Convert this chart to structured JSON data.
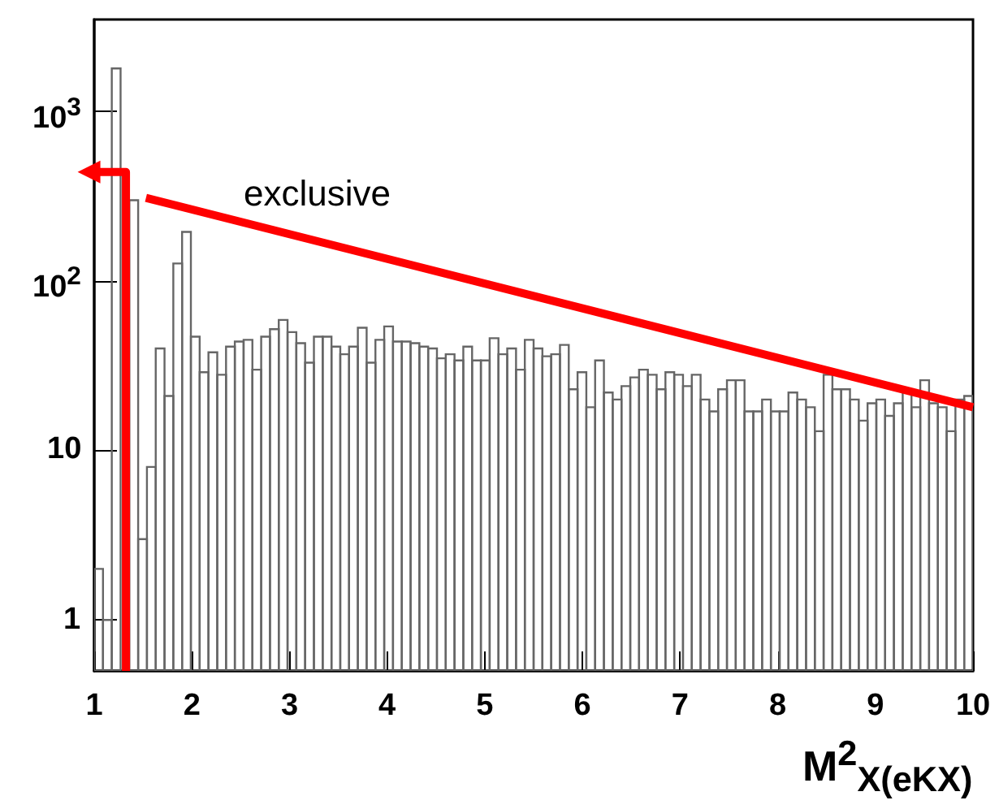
{
  "chart_data": {
    "type": "histogram",
    "xlabel": "M$^{2}$$_{X(eKX)}$",
    "annotations": [
      "exclusive"
    ],
    "color": "#666666",
    "log": "y",
    "bins": [
      1,
      1.09,
      1.18,
      1.27,
      1.36,
      1.45,
      1.54,
      1.63,
      1.72,
      1.81,
      1.9,
      1.99,
      2.08,
      2.17,
      2.26,
      2.35,
      2.44,
      2.53,
      2.62,
      2.71,
      2.8,
      2.89,
      2.98,
      3.07,
      3.16,
      3.25,
      3.34,
      3.43,
      3.52,
      3.61,
      3.7,
      3.79,
      3.88,
      3.97,
      4.06,
      4.15,
      4.24,
      4.33,
      4.42,
      4.51,
      4.6,
      4.69,
      4.78,
      4.87,
      4.96,
      5.05,
      5.14,
      5.23,
      5.32,
      5.41,
      5.5,
      5.59,
      5.68,
      5.77,
      5.86,
      5.95,
      6.04,
      6.13,
      6.22,
      6.31,
      6.4,
      6.49,
      6.58,
      6.67,
      6.76,
      6.85,
      6.94,
      7.03,
      7.12,
      7.21,
      7.3,
      7.39,
      7.48,
      7.57,
      7.66,
      7.75,
      7.84,
      7.93,
      8.02,
      8.11,
      8.2,
      8.29,
      8.38,
      8.47,
      8.56,
      8.65,
      8.74,
      8.83,
      8.92,
      9.01,
      9.1,
      9.19,
      9.28,
      9.37,
      9.46,
      9.55,
      9.64,
      9.73,
      9.82,
      9.91,
      10
    ],
    "values": [
      2,
      1,
      1800,
      null,
      300,
      3,
      8,
      40,
      21,
      127,
      195,
      47,
      29,
      38,
      28,
      41,
      44,
      45,
      30,
      47,
      52,
      59,
      50,
      43,
      33,
      47,
      47,
      41,
      37,
      41,
      53,
      33,
      45,
      54,
      44,
      44,
      43,
      41,
      40,
      35,
      37,
      34,
      41,
      34,
      34,
      46,
      37,
      40,
      30,
      45,
      40,
      36,
      37,
      42,
      23,
      29,
      18,
      34,
      22,
      20,
      24,
      27,
      30,
      28,
      23,
      29,
      28,
      24,
      28,
      20,
      17,
      23,
      26,
      26,
      17,
      17,
      20,
      17,
      17,
      22,
      20,
      18,
      13,
      28,
      23,
      23,
      20,
      15,
      19,
      20,
      16,
      19,
      23,
      18,
      26,
      19,
      18,
      13,
      20,
      21
    ],
    "series": [
      {
        "type": "line",
        "color": "#ff0000",
        "marker": "none",
        "x": [
          1.53,
          10
        ],
        "values": [
          310,
          18
        ]
      }
    ],
    "xlim": [
      1,
      10
    ],
    "xticks": [
      1,
      2,
      3,
      4,
      5,
      6,
      7,
      8,
      9,
      10
    ],
    "ylim": [
      0.5,
      3500
    ],
    "yticks": [
      1,
      10,
      {
        "value": 100,
        "label": "10$^{2}$"
      },
      {
        "value": 1000,
        "label": "10$^{3}$"
      }
    ]
  }
}
